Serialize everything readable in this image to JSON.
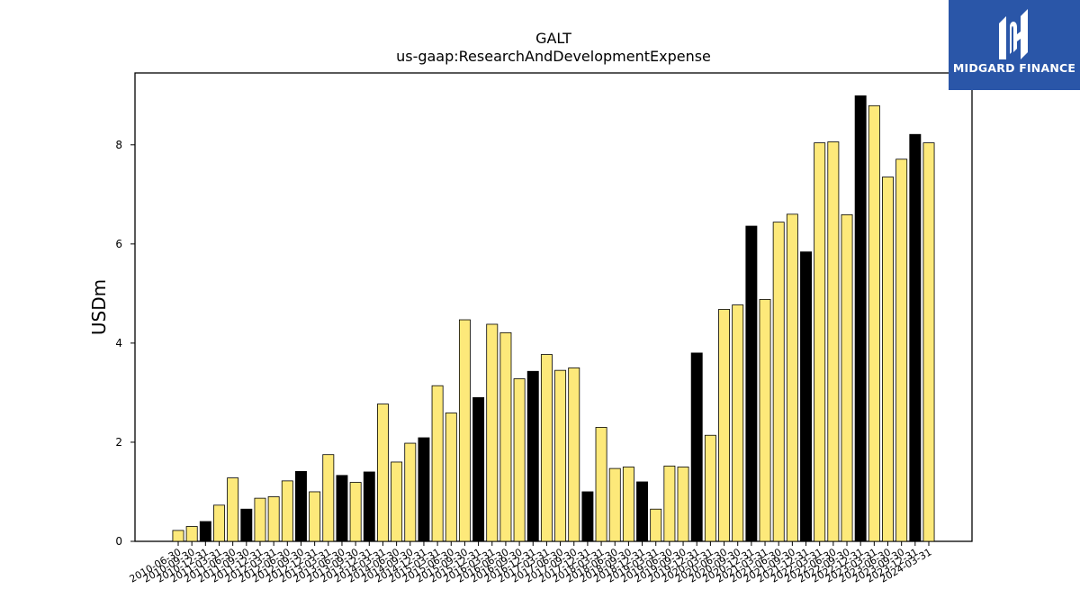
{
  "chart_data": {
    "type": "bar",
    "title": "GALT",
    "subtitle": "us-gaap:ResearchAndDevelopmentExpense",
    "ylabel": "USDm",
    "xlabel": "",
    "ylim": [
      0,
      9.45
    ],
    "yticks": [
      0,
      2,
      4,
      6,
      8
    ],
    "grid": false,
    "colors": {
      "quarter": "#fde97a",
      "annual": "#000000",
      "edge": "#000000"
    },
    "categories": [
      "2010-06-30",
      "2010-09-30",
      "2010-12-31",
      "2011-03-31",
      "2011-06-30",
      "2011-09-30",
      "2011-12-31",
      "2012-03-31",
      "2012-06-30",
      "2012-09-30",
      "2012-12-31",
      "2013-03-31",
      "2013-06-30",
      "2013-09-30",
      "2013-12-31",
      "2014-03-31",
      "2014-06-30",
      "2014-09-30",
      "2014-12-31",
      "2015-03-31",
      "2015-06-30",
      "2015-09-30",
      "2015-12-31",
      "2016-03-31",
      "2016-06-30",
      "2016-09-30",
      "2016-12-31",
      "2017-03-31",
      "2017-06-30",
      "2017-09-30",
      "2017-12-31",
      "2018-03-31",
      "2018-06-30",
      "2018-09-30",
      "2018-12-31",
      "2019-03-31",
      "2019-06-30",
      "2019-09-30",
      "2019-12-31",
      "2020-03-31",
      "2020-06-30",
      "2020-09-30",
      "2020-12-31",
      "2021-03-31",
      "2021-06-30",
      "2021-09-30",
      "2021-12-31",
      "2022-03-31",
      "2022-06-30",
      "2022-09-30",
      "2022-12-31",
      "2023-03-31",
      "2023-06-30",
      "2023-09-30",
      "2023-12-31",
      "2024-03-31"
    ],
    "values": [
      0.22,
      0.3,
      0.4,
      0.73,
      1.28,
      0.65,
      0.87,
      0.9,
      1.22,
      1.41,
      1.0,
      1.75,
      1.33,
      1.19,
      1.4,
      2.77,
      1.6,
      1.98,
      2.09,
      3.14,
      2.59,
      4.47,
      2.9,
      4.38,
      4.21,
      3.28,
      3.43,
      3.77,
      3.45,
      3.5,
      1.0,
      2.3,
      1.47,
      1.5,
      1.2,
      0.65,
      1.52,
      1.5,
      3.8,
      2.14,
      4.68,
      4.77,
      6.36,
      4.88,
      6.44,
      6.6,
      5.84,
      8.04,
      8.06,
      6.59,
      8.99,
      8.79,
      7.35,
      7.71,
      8.21,
      8.04
    ],
    "annual_flags": [
      0,
      0,
      1,
      0,
      0,
      1,
      0,
      0,
      0,
      1,
      0,
      0,
      1,
      0,
      1,
      0,
      0,
      0,
      1,
      0,
      0,
      0,
      1,
      0,
      0,
      0,
      1,
      0,
      0,
      0,
      1,
      0,
      0,
      0,
      1,
      0,
      0,
      0,
      1,
      0,
      0,
      0,
      1,
      0,
      0,
      0,
      1,
      0,
      0,
      0,
      1,
      0,
      0,
      0,
      1,
      0
    ]
  },
  "logo": {
    "text": "MIDGARD FINANCE"
  }
}
